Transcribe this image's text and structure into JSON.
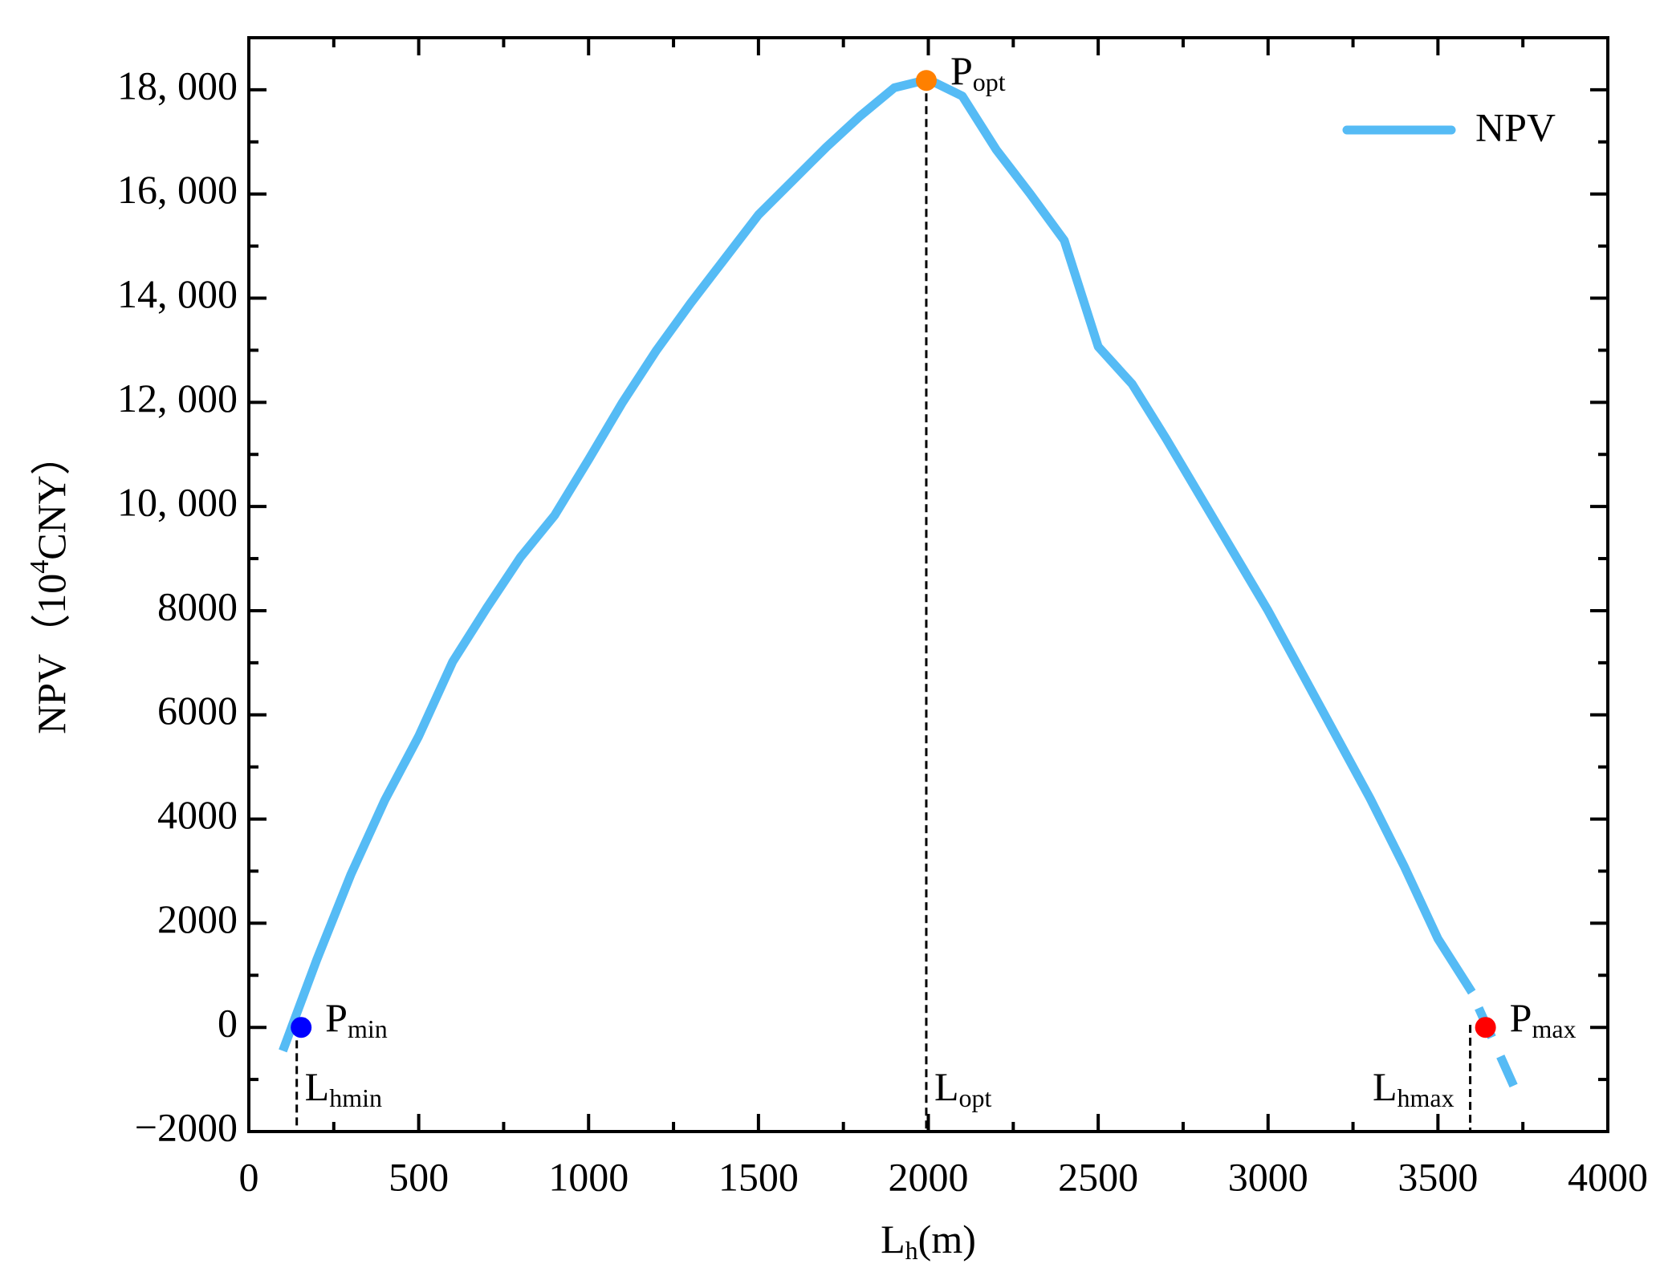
{
  "chart_data": {
    "type": "line",
    "x_label": {
      "text": "L",
      "sub": "h",
      "rest": "(m)"
    },
    "y_label": {
      "text": "NPV（10",
      "sup": "4",
      "rest": "CNY）"
    },
    "x": [
      100,
      200,
      300,
      400,
      500,
      600,
      700,
      800,
      900,
      1000,
      1100,
      1200,
      1300,
      1400,
      1500,
      1600,
      1700,
      1800,
      1900,
      2000,
      2100,
      2200,
      2300,
      2400,
      2500,
      2600,
      2700,
      2800,
      2900,
      3000,
      3100,
      3200,
      3300,
      3400,
      3500,
      3600
    ],
    "series": [
      {
        "name": "NPV",
        "color": "#55bbf5",
        "values": [
          -450,
          1300,
          2930,
          4360,
          5590,
          7020,
          8050,
          9030,
          9830,
          10900,
          12000,
          13000,
          13900,
          14750,
          15600,
          16250,
          16900,
          17500,
          18040,
          18200,
          17880,
          16850,
          16000,
          15110,
          13070,
          12350,
          11300,
          10200,
          9100,
          8000,
          6800,
          5600,
          4400,
          3100,
          1700,
          675
        ]
      }
    ],
    "extension": {
      "x": [
        3620,
        3740
      ],
      "values": [
        370,
        -1370
      ],
      "color": "#55bbf5"
    },
    "points": [
      {
        "label": {
          "text": "P",
          "sub": "min"
        },
        "x": 154,
        "y": 0,
        "color": "#0000ff"
      },
      {
        "label": {
          "text": "P",
          "sub": "opt"
        },
        "x": 1994,
        "y": 18180,
        "color": "#ff8000"
      },
      {
        "label": {
          "text": "P",
          "sub": "max"
        },
        "x": 3640,
        "y": 0,
        "color": "#ff0000"
      }
    ],
    "vlines": [
      {
        "label": {
          "text": "L",
          "sub": "hmin"
        },
        "x": 141,
        "y_top": -250,
        "label_side": "right"
      },
      {
        "label": {
          "text": "L",
          "sub": "opt"
        },
        "x": 1994,
        "y_top": 18180,
        "label_side": "right"
      },
      {
        "label": {
          "text": "L",
          "sub": "hmax"
        },
        "x": 3595,
        "y_top": 50,
        "label_side": "left"
      }
    ],
    "xlim": [
      0,
      4000
    ],
    "ylim": [
      -2000,
      19000
    ],
    "xticks": [
      0,
      500,
      1000,
      1500,
      2000,
      2500,
      3000,
      3500,
      4000
    ],
    "yticks": [
      {
        "value": -2000,
        "label": "−2000"
      },
      0,
      2000,
      4000,
      6000,
      8000,
      {
        "value": 10000,
        "label": "10, 000"
      },
      {
        "value": 12000,
        "label": "12, 000"
      },
      {
        "value": 14000,
        "label": "14, 000"
      },
      {
        "value": 16000,
        "label": "16, 000"
      },
      {
        "value": 18000,
        "label": "18, 000"
      }
    ],
    "xticks_minor": [
      250,
      750,
      1250,
      1750,
      2250,
      2750,
      3250,
      3750
    ],
    "yticks_minor": [
      -1000,
      1000,
      3000,
      5000,
      7000,
      9000,
      11000,
      13000,
      15000,
      17000
    ],
    "legend": "upper right"
  }
}
